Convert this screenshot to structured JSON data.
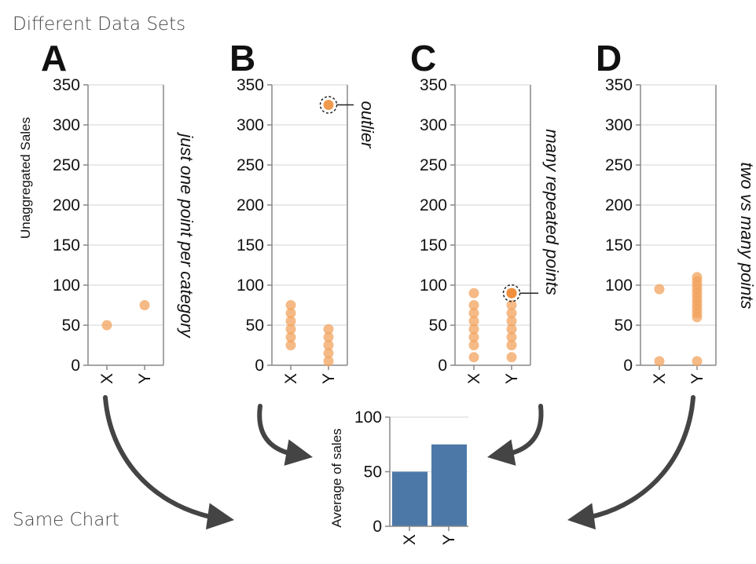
{
  "headings": {
    "top": "Different Data Sets",
    "bottom": "Same Chart"
  },
  "colors": {
    "point": "#F2A35E",
    "point_highlight": "#EE8F3D",
    "bar": "#4C78A8",
    "arrow": "#444444"
  },
  "chart_data": [
    {
      "type": "scatter",
      "panel": "A",
      "ylabel": "Unaggregated Sales",
      "ylim": [
        0,
        350
      ],
      "yticks": [
        "0",
        "50",
        "100",
        "150",
        "200",
        "250",
        "300",
        "350"
      ],
      "categories": [
        "X",
        "Y"
      ],
      "points": [
        {
          "x": "X",
          "y": 50
        },
        {
          "x": "Y",
          "y": 75
        }
      ],
      "annotation": "just one point per category"
    },
    {
      "type": "scatter",
      "panel": "B",
      "ylabel": "",
      "ylim": [
        0,
        350
      ],
      "yticks": [
        "0",
        "50",
        "100",
        "150",
        "200",
        "250",
        "300",
        "350"
      ],
      "categories": [
        "X",
        "Y"
      ],
      "points": [
        {
          "x": "X",
          "y": 25
        },
        {
          "x": "X",
          "y": 35
        },
        {
          "x": "X",
          "y": 45
        },
        {
          "x": "X",
          "y": 55
        },
        {
          "x": "X",
          "y": 65
        },
        {
          "x": "X",
          "y": 75
        },
        {
          "x": "Y",
          "y": 5
        },
        {
          "x": "Y",
          "y": 15
        },
        {
          "x": "Y",
          "y": 25
        },
        {
          "x": "Y",
          "y": 35
        },
        {
          "x": "Y",
          "y": 45
        },
        {
          "x": "Y",
          "y": 325
        }
      ],
      "highlight": {
        "x": "Y",
        "y": 325
      },
      "annotation": "outlier"
    },
    {
      "type": "scatter",
      "panel": "C",
      "ylabel": "",
      "ylim": [
        0,
        350
      ],
      "yticks": [
        "0",
        "50",
        "100",
        "150",
        "200",
        "250",
        "300",
        "350"
      ],
      "categories": [
        "X",
        "Y"
      ],
      "points": [
        {
          "x": "X",
          "y": 10
        },
        {
          "x": "X",
          "y": 25
        },
        {
          "x": "X",
          "y": 35
        },
        {
          "x": "X",
          "y": 45
        },
        {
          "x": "X",
          "y": 55
        },
        {
          "x": "X",
          "y": 65
        },
        {
          "x": "X",
          "y": 75
        },
        {
          "x": "X",
          "y": 90
        },
        {
          "x": "Y",
          "y": 10
        },
        {
          "x": "Y",
          "y": 25
        },
        {
          "x": "Y",
          "y": 35
        },
        {
          "x": "Y",
          "y": 45
        },
        {
          "x": "Y",
          "y": 55
        },
        {
          "x": "Y",
          "y": 65
        },
        {
          "x": "Y",
          "y": 75
        },
        {
          "x": "Y",
          "y": 90
        },
        {
          "x": "Y",
          "y": 90
        },
        {
          "x": "Y",
          "y": 90
        },
        {
          "x": "Y",
          "y": 90
        }
      ],
      "highlight": {
        "x": "Y",
        "y": 90
      },
      "annotation": "many repeated points"
    },
    {
      "type": "scatter",
      "panel": "D",
      "ylabel": "",
      "ylim": [
        0,
        350
      ],
      "yticks": [
        "0",
        "50",
        "100",
        "150",
        "200",
        "250",
        "300",
        "350"
      ],
      "categories": [
        "X",
        "Y"
      ],
      "points": [
        {
          "x": "X",
          "y": 5
        },
        {
          "x": "X",
          "y": 95
        },
        {
          "x": "Y",
          "y": 5
        },
        {
          "x": "Y",
          "y": 60
        },
        {
          "x": "Y",
          "y": 65
        },
        {
          "x": "Y",
          "y": 70
        },
        {
          "x": "Y",
          "y": 75
        },
        {
          "x": "Y",
          "y": 80
        },
        {
          "x": "Y",
          "y": 85
        },
        {
          "x": "Y",
          "y": 90
        },
        {
          "x": "Y",
          "y": 95
        },
        {
          "x": "Y",
          "y": 100
        },
        {
          "x": "Y",
          "y": 105
        },
        {
          "x": "Y",
          "y": 110
        }
      ],
      "annotation": "two vs many points"
    },
    {
      "type": "bar",
      "panel": "summary",
      "ylabel": "Average of sales",
      "ylim": [
        0,
        100
      ],
      "yticks": [
        "0",
        "50",
        "100"
      ],
      "categories": [
        "X",
        "Y"
      ],
      "values": [
        50,
        75
      ]
    }
  ]
}
